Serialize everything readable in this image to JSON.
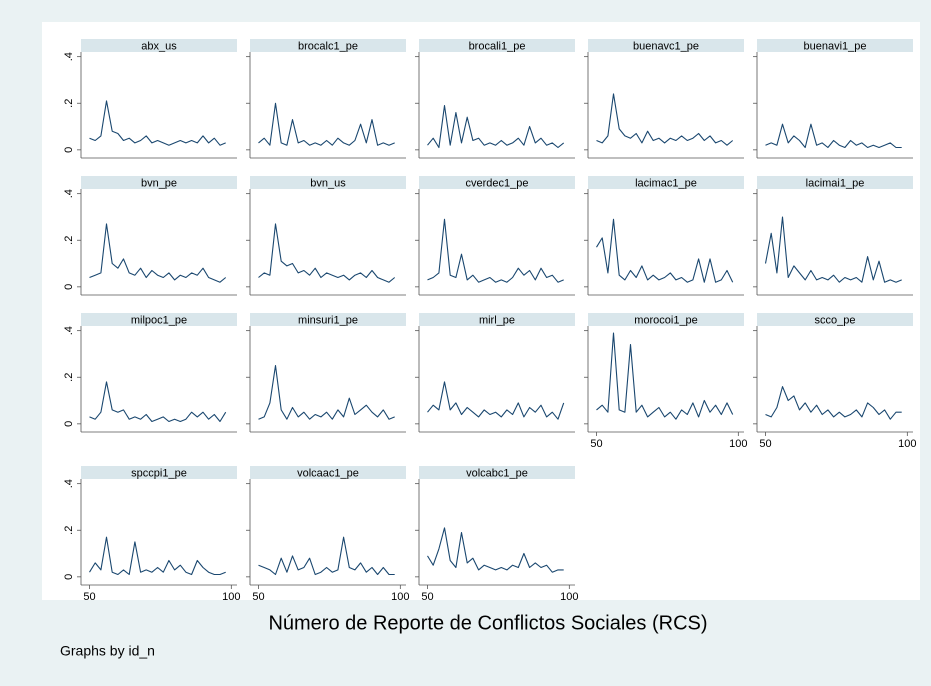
{
  "chart_data": {
    "type": "line",
    "x": [
      50,
      52,
      54,
      56,
      58,
      60,
      62,
      64,
      66,
      68,
      70,
      72,
      74,
      76,
      78,
      80,
      82,
      84,
      86,
      88,
      90,
      92,
      94,
      96,
      98
    ],
    "xlim": [
      47,
      102
    ],
    "xticks": [
      50,
      100
    ],
    "ylim": [
      -0.035,
      0.42
    ],
    "yticks": [
      0,
      {
        "value": 0.2,
        "label": ".2"
      },
      {
        "value": 0.4,
        "label": ".4"
      }
    ],
    "xlabel": "Número de Reporte de Conflictos Sociales (RCS)",
    "note": "Graphs by id_n",
    "color": "#1a476f",
    "series": [
      {
        "name": "abx_us",
        "values": [
          0.05,
          0.04,
          0.06,
          0.21,
          0.08,
          0.07,
          0.04,
          0.05,
          0.03,
          0.04,
          0.06,
          0.03,
          0.04,
          0.03,
          0.02,
          0.03,
          0.04,
          0.03,
          0.04,
          0.03,
          0.06,
          0.03,
          0.05,
          0.02,
          0.03
        ]
      },
      {
        "name": "brocalc1_pe",
        "values": [
          0.03,
          0.05,
          0.02,
          0.2,
          0.03,
          0.02,
          0.13,
          0.03,
          0.04,
          0.02,
          0.03,
          0.02,
          0.04,
          0.02,
          0.05,
          0.03,
          0.02,
          0.04,
          0.11,
          0.03,
          0.13,
          0.02,
          0.03,
          0.02,
          0.03
        ]
      },
      {
        "name": "brocali1_pe",
        "values": [
          0.02,
          0.05,
          0.01,
          0.19,
          0.02,
          0.16,
          0.03,
          0.14,
          0.04,
          0.05,
          0.02,
          0.03,
          0.02,
          0.04,
          0.02,
          0.03,
          0.05,
          0.02,
          0.1,
          0.03,
          0.05,
          0.02,
          0.03,
          0.01,
          0.03
        ]
      },
      {
        "name": "buenavc1_pe",
        "values": [
          0.04,
          0.03,
          0.06,
          0.24,
          0.09,
          0.06,
          0.05,
          0.07,
          0.03,
          0.08,
          0.04,
          0.05,
          0.03,
          0.05,
          0.04,
          0.06,
          0.04,
          0.05,
          0.07,
          0.04,
          0.06,
          0.03,
          0.04,
          0.02,
          0.04
        ]
      },
      {
        "name": "buenavi1_pe",
        "values": [
          0.02,
          0.03,
          0.02,
          0.11,
          0.03,
          0.06,
          0.04,
          0.01,
          0.11,
          0.02,
          0.03,
          0.01,
          0.04,
          0.02,
          0.01,
          0.04,
          0.02,
          0.03,
          0.01,
          0.02,
          0.01,
          0.02,
          0.03,
          0.01,
          0.01
        ]
      },
      {
        "name": "bvn_pe",
        "values": [
          0.04,
          0.05,
          0.06,
          0.27,
          0.1,
          0.08,
          0.12,
          0.06,
          0.05,
          0.08,
          0.04,
          0.07,
          0.05,
          0.04,
          0.06,
          0.03,
          0.05,
          0.04,
          0.06,
          0.05,
          0.08,
          0.04,
          0.03,
          0.02,
          0.04
        ]
      },
      {
        "name": "bvn_us",
        "values": [
          0.04,
          0.06,
          0.05,
          0.27,
          0.11,
          0.09,
          0.1,
          0.06,
          0.07,
          0.05,
          0.08,
          0.04,
          0.06,
          0.05,
          0.04,
          0.05,
          0.03,
          0.05,
          0.06,
          0.04,
          0.07,
          0.04,
          0.03,
          0.02,
          0.04
        ]
      },
      {
        "name": "cverdec1_pe",
        "values": [
          0.03,
          0.04,
          0.06,
          0.29,
          0.05,
          0.04,
          0.14,
          0.03,
          0.05,
          0.02,
          0.03,
          0.04,
          0.02,
          0.03,
          0.02,
          0.04,
          0.08,
          0.05,
          0.07,
          0.03,
          0.08,
          0.04,
          0.05,
          0.02,
          0.03
        ]
      },
      {
        "name": "lacimac1_pe",
        "values": [
          0.17,
          0.21,
          0.06,
          0.29,
          0.05,
          0.03,
          0.07,
          0.04,
          0.09,
          0.03,
          0.05,
          0.03,
          0.04,
          0.06,
          0.03,
          0.04,
          0.02,
          0.03,
          0.12,
          0.02,
          0.12,
          0.02,
          0.03,
          0.07,
          0.02
        ]
      },
      {
        "name": "lacimai1_pe",
        "values": [
          0.1,
          0.23,
          0.06,
          0.3,
          0.04,
          0.09,
          0.06,
          0.03,
          0.07,
          0.03,
          0.04,
          0.03,
          0.05,
          0.02,
          0.04,
          0.03,
          0.04,
          0.02,
          0.13,
          0.03,
          0.11,
          0.02,
          0.03,
          0.02,
          0.03
        ]
      },
      {
        "name": "milpoc1_pe",
        "values": [
          0.03,
          0.02,
          0.05,
          0.18,
          0.06,
          0.05,
          0.06,
          0.02,
          0.03,
          0.02,
          0.04,
          0.01,
          0.02,
          0.03,
          0.01,
          0.02,
          0.01,
          0.02,
          0.05,
          0.03,
          0.05,
          0.02,
          0.04,
          0.01,
          0.05
        ]
      },
      {
        "name": "minsuri1_pe",
        "values": [
          0.02,
          0.03,
          0.09,
          0.25,
          0.06,
          0.02,
          0.07,
          0.03,
          0.05,
          0.02,
          0.04,
          0.03,
          0.05,
          0.02,
          0.06,
          0.03,
          0.11,
          0.04,
          0.06,
          0.08,
          0.05,
          0.03,
          0.06,
          0.02,
          0.03
        ]
      },
      {
        "name": "mirl_pe",
        "values": [
          0.05,
          0.08,
          0.06,
          0.18,
          0.06,
          0.09,
          0.04,
          0.07,
          0.05,
          0.03,
          0.06,
          0.04,
          0.05,
          0.03,
          0.06,
          0.04,
          0.09,
          0.03,
          0.07,
          0.05,
          0.08,
          0.03,
          0.05,
          0.02,
          0.09
        ]
      },
      {
        "name": "morocoi1_pe",
        "values": [
          0.06,
          0.08,
          0.05,
          0.39,
          0.06,
          0.05,
          0.34,
          0.05,
          0.08,
          0.03,
          0.05,
          0.07,
          0.03,
          0.05,
          0.02,
          0.06,
          0.04,
          0.09,
          0.03,
          0.1,
          0.05,
          0.08,
          0.04,
          0.09,
          0.04
        ]
      },
      {
        "name": "scco_pe",
        "values": [
          0.04,
          0.03,
          0.07,
          0.16,
          0.1,
          0.12,
          0.06,
          0.09,
          0.05,
          0.08,
          0.04,
          0.06,
          0.03,
          0.05,
          0.03,
          0.04,
          0.06,
          0.03,
          0.09,
          0.07,
          0.04,
          0.06,
          0.02,
          0.05,
          0.05
        ]
      },
      {
        "name": "spccpi1_pe",
        "values": [
          0.02,
          0.06,
          0.03,
          0.17,
          0.02,
          0.01,
          0.03,
          0.01,
          0.15,
          0.02,
          0.03,
          0.02,
          0.04,
          0.02,
          0.07,
          0.03,
          0.05,
          0.02,
          0.01,
          0.07,
          0.04,
          0.02,
          0.01,
          0.01,
          0.02
        ]
      },
      {
        "name": "volcaac1_pe",
        "values": [
          0.05,
          0.04,
          0.03,
          0.01,
          0.08,
          0.02,
          0.09,
          0.03,
          0.04,
          0.08,
          0.01,
          0.02,
          0.04,
          0.02,
          0.03,
          0.17,
          0.04,
          0.03,
          0.06,
          0.02,
          0.04,
          0.01,
          0.04,
          0.01,
          0.01
        ]
      },
      {
        "name": "volcabc1_pe",
        "values": [
          0.09,
          0.05,
          0.12,
          0.21,
          0.07,
          0.04,
          0.19,
          0.06,
          0.08,
          0.03,
          0.05,
          0.04,
          0.03,
          0.04,
          0.03,
          0.05,
          0.04,
          0.1,
          0.04,
          0.06,
          0.04,
          0.05,
          0.02,
          0.03,
          0.03
        ]
      }
    ]
  }
}
